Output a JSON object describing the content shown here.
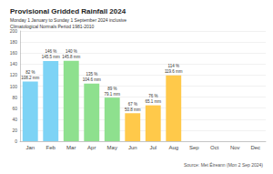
{
  "chart_data": {
    "type": "bar",
    "title": "Provisional Gridded Rainfall 2024",
    "subtitle": [
      "Monday 1 January to Sunday 1 September 2024 inclusive",
      "Climatological Normals Period 1981-2010"
    ],
    "source": "Source: Met Éireann (Mon 2 Sep 2024)",
    "categories": [
      "Jan",
      "Feb",
      "Mar",
      "Apr",
      "May",
      "Jun",
      "Jul",
      "Aug",
      "Sep",
      "Oct",
      "Nov",
      "Dec"
    ],
    "values": [
      108.2,
      145.5,
      145.8,
      104.6,
      79.1,
      50.8,
      65.1,
      119.6,
      null,
      null,
      null,
      null
    ],
    "value_labels": [
      "108.2 mm",
      "145.5 mm",
      "145.8 mm",
      "104.6 mm",
      "79.1 mm",
      "50.8 mm",
      "65.1 mm",
      "119.6 mm",
      null,
      null,
      null,
      null
    ],
    "percent_labels": [
      "82 %",
      "146 %",
      "140 %",
      "135 %",
      "89 %",
      "67 %",
      "76 %",
      "114 %",
      null,
      null,
      null,
      null
    ],
    "colors": [
      "#7dd3f5",
      "#7dd3f5",
      "#8ee08e",
      "#8ee08e",
      "#8ee08e",
      "#ffc94a",
      "#ffc94a",
      "#ffc94a",
      "#f4a460",
      "#f4a460",
      "#f4a460",
      "#7dd3f5"
    ],
    "ylim": [
      0,
      200
    ],
    "yticks": [
      0,
      20,
      40,
      60,
      80,
      100,
      120,
      140,
      160,
      180,
      200
    ],
    "grid": true,
    "data_labels": true
  }
}
